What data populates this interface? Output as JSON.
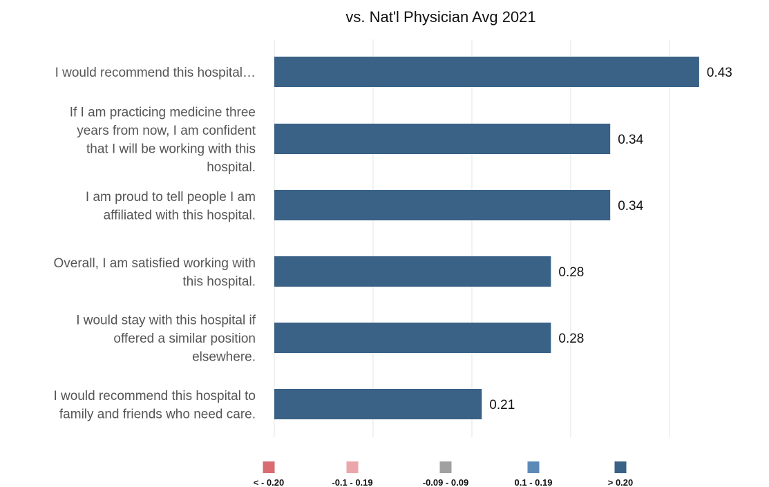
{
  "chart_data": {
    "type": "bar",
    "orientation": "horizontal",
    "title": "vs. Nat'l Physician Avg 2021",
    "categories": [
      "I would recommend this hospital…",
      "If I am practicing medicine three years from now, I am confident that I will be working with this hospital.",
      "I am proud to tell people I am affiliated with this hospital.",
      "Overall, I am satisfied working with this hospital.",
      "I would stay with this hospital if offered a similar position elsewhere.",
      "I would recommend this hospital to family and friends who need care."
    ],
    "category_lines": [
      [
        "I would recommend this hospital…"
      ],
      [
        "If I am practicing medicine three",
        "years from now, I am confident",
        "that I will be working with this",
        "hospital."
      ],
      [
        "I am proud to tell people I am",
        "affiliated with this hospital."
      ],
      [
        "Overall, I am satisfied working with",
        "this hospital."
      ],
      [
        "I would stay with this hospital if",
        "offered a similar position",
        "elsewhere."
      ],
      [
        "I would recommend this hospital to",
        "family and friends who need care."
      ]
    ],
    "values": [
      0.43,
      0.34,
      0.34,
      0.28,
      0.28,
      0.21
    ],
    "value_labels": [
      "0.43",
      "0.34",
      "0.34",
      "0.28",
      "0.28",
      "0.21"
    ],
    "xlim": [
      0,
      0.45
    ],
    "x_gridlines": [
      0,
      0.1,
      0.2,
      0.3,
      0.4
    ],
    "grid": true,
    "bar_color": "#3a6186",
    "legend_position": "bottom",
    "legend": [
      {
        "label": "< - 0.20",
        "color": "#d96b72"
      },
      {
        "label": "-0.1 - 0.19",
        "color": "#eba6ab"
      },
      {
        "label": "-0.09 - 0.09",
        "color": "#a0a0a0"
      },
      {
        "label": "0.1 - 0.19",
        "color": "#5b8ab8"
      },
      {
        "label": "> 0.20",
        "color": "#3a6186"
      }
    ]
  }
}
